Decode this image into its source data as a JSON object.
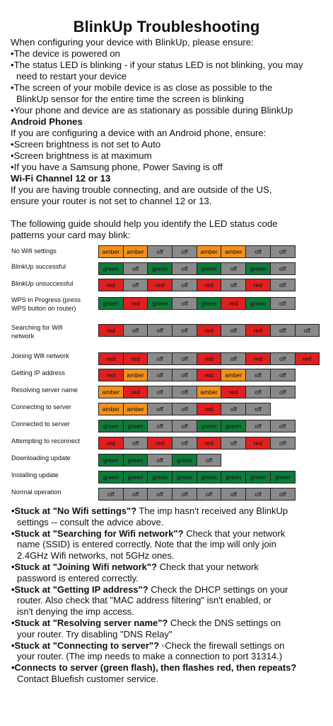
{
  "title": "BlinkUp Troubleshooting",
  "intro": {
    "lead": "When configuring your device with BlinkUp, please ensure:",
    "bullets": [
      [
        "•The device is powered on"
      ],
      [
        "•The status LED is blinking - if your status LED is not blinking, you may",
        "need to restart your device"
      ],
      [
        "•The screen of your mobile device is as close as possible to the",
        "BlinkUp sensor for the entire time the screen is blinking"
      ],
      [
        "•Your phone and device are as stationary as possible during BlinkUp"
      ]
    ],
    "android_heading": "Android Phones",
    "android_lead": " If you are configuring a device with an Android phone, ensure:",
    "android_bullets": [
      "•Screen brightness is not set to Auto",
      "•Screen brightness is at maximum",
      "•If you have a Samsung phone, Power Saving is off"
    ],
    "wifi_heading": "Wi-Fi Channel 12 or 13",
    "wifi_lines": [
      "If you are having trouble connecting, and are outside of the US,",
      "ensure your router is not set to channel 12 or 13."
    ],
    "guide_lines": [
      "The following guide should help you identify the LED status code",
      "patterns your card may blink:"
    ]
  },
  "colors": {
    "amber": "#f0901e",
    "green": "#0f7a3a",
    "red": "#e01f1f",
    "off": "#8a8a8a"
  },
  "led_table": [
    {
      "label": [
        "No Wifi settings"
      ],
      "cells": [
        "amber",
        "amber",
        "off",
        "off",
        "amber",
        "amber",
        "off",
        "off"
      ]
    },
    {
      "label": [
        "BlinkUp successful"
      ],
      "cells": [
        "green",
        "off",
        "green",
        "off",
        "green",
        "off",
        "green",
        "off"
      ]
    },
    {
      "label": [
        "BlinkUp unsuccessful"
      ],
      "cells": [
        "red",
        "off",
        "red",
        "off",
        "red",
        "off",
        "red",
        "off"
      ]
    },
    {
      "label": [
        "WPS in Progress (press",
        "WPS button on router)"
      ],
      "cells": [
        "green",
        "red",
        "green",
        "off",
        "green",
        "red",
        "green",
        "off"
      ]
    },
    {
      "label": [
        "Searching for Wifi",
        "network"
      ],
      "cells": [
        "red",
        "off",
        "off",
        "off",
        "red",
        "off",
        "red",
        "off",
        "off"
      ]
    },
    {
      "label": [
        "Joining Wifi network"
      ],
      "cells": [
        "red",
        "red",
        "off",
        "off",
        "red",
        "off",
        "red",
        "off",
        "red"
      ]
    },
    {
      "label": [
        "Getting IP address"
      ],
      "cells": [
        "red",
        "amber",
        "off",
        "off",
        "red",
        "amber",
        "off",
        "off"
      ]
    },
    {
      "label": [
        "Resolving server name"
      ],
      "cells": [
        "amber",
        "red",
        "off",
        "off",
        "amber",
        "red",
        "off",
        "off"
      ]
    },
    {
      "label": [
        "Connecting to server"
      ],
      "cells": [
        "amber",
        "amber",
        "off",
        "off",
        "red",
        "off",
        "off"
      ]
    },
    {
      "label": [
        "Connected to server"
      ],
      "cells": [
        "green",
        "green",
        "off",
        "off",
        "green",
        "green",
        "off",
        "off"
      ]
    },
    {
      "label": [
        "Attempting to reconnect"
      ],
      "cells": [
        "red",
        "off",
        "red",
        "off",
        "red",
        "off",
        "red",
        "off"
      ]
    },
    {
      "label": [
        "Downloading update"
      ],
      "cells": [
        "green",
        "green",
        "off",
        "green",
        "off"
      ]
    },
    {
      "label": [
        "Installing update"
      ],
      "cells": [
        "green",
        "green",
        "green",
        "green",
        "green",
        "green",
        "green",
        "green"
      ]
    },
    {
      "label": [
        "Normal operation"
      ],
      "cells": [
        "off",
        "off",
        "off",
        "off",
        "off",
        "off",
        "off",
        "off"
      ]
    }
  ],
  "notes": [
    {
      "bold": "•Stuck at \"No Wifi settings\"?",
      "text": [
        " The imp hasn't received any BlinkUp",
        "settings -- consult the advice above."
      ]
    },
    {
      "bold": "•Stuck at \"Searching for Wifi network\"?",
      "text": [
        " Check that your network",
        "name (SSID) is entered correctly. Note that the imp will only join",
        "2.4GHz Wifi networks, not 5GHz ones."
      ]
    },
    {
      "bold": "•Stuck at \"Joining Wifi network\"?",
      "text": [
        " Check that your network",
        "password is entered correctly."
      ]
    },
    {
      "bold": "•Stuck at \"Getting IP address\"?",
      "text": [
        " Check the DHCP settings on your",
        "router. Also check that \"MAC address filtering\" isn't enabled, or",
        "isn't denying the imp access."
      ]
    },
    {
      "bold": "•Stuck at \"Resolving server name\"?",
      "text": [
        " Check the DNS settings on",
        "your router. Try disabling \"DNS Relay\""
      ]
    },
    {
      "bold": "•Stuck at \"Connecting to server\"?",
      "text": [
        " ◦Check the firewall settings on",
        "your router. (The imp needs to make a connection to port 31314.)"
      ]
    },
    {
      "bold": "•Connects to server (green flash), then flashes red, then repeats?",
      "text": [
        "",
        "Contact Bluefish customer service."
      ]
    }
  ]
}
